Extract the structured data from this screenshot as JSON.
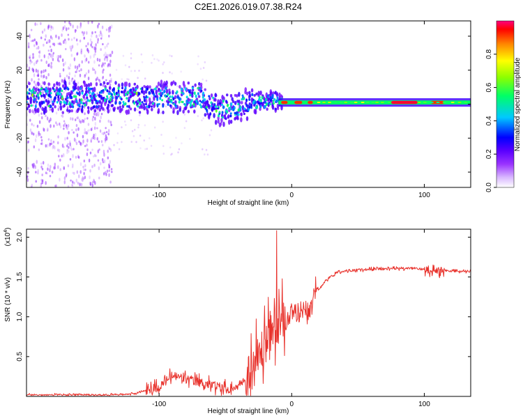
{
  "title": "C2E1.2026.019.07.38.R24",
  "chart_data": [
    {
      "type": "heatmap",
      "xlabel": "Height of straight line (km)",
      "ylabel": "Frequency (Hz)",
      "xlim": [
        -200,
        135
      ],
      "ylim": [
        -49,
        49
      ],
      "x_ticks": [
        -100,
        0,
        100
      ],
      "y_ticks": [
        40,
        20,
        0,
        -20,
        -40
      ],
      "colorbar": {
        "label": "Normalized spectral amplitude",
        "range": [
          0.0,
          1.0
        ],
        "ticks": [
          "0.0",
          "0.2",
          "0.4",
          "0.6",
          "0.8"
        ],
        "colors": [
          "#ffffff",
          "#d9b8ff",
          "#7b00ff",
          "#0000ff",
          "#00c8ff",
          "#00ff66",
          "#8cff00",
          "#ffff00",
          "#ff8800",
          "#ff0000",
          "#ff0080"
        ]
      }
    },
    {
      "type": "line",
      "xlabel": "Height of straight line (km)",
      "ylabel": "SNR (10 * v/v)",
      "multiplier": "(x10",
      "multiplier_exp": "4",
      "multiplier_close": ")",
      "xlim": [
        -200,
        135
      ],
      "ylim": [
        0.0,
        2.1
      ],
      "x_ticks": [
        -100,
        0,
        100
      ],
      "y_ticks": [
        "0.5",
        "1.0",
        "1.5",
        "2.0"
      ],
      "color": "#e8322c",
      "series_knots": [
        {
          "x": -200,
          "y": 0.02
        },
        {
          "x": -150,
          "y": 0.02
        },
        {
          "x": -120,
          "y": 0.03
        },
        {
          "x": -100,
          "y": 0.12
        },
        {
          "x": -90,
          "y": 0.26
        },
        {
          "x": -75,
          "y": 0.2
        },
        {
          "x": -60,
          "y": 0.14
        },
        {
          "x": -45,
          "y": 0.08
        },
        {
          "x": -35,
          "y": 0.2
        },
        {
          "x": -25,
          "y": 0.5
        },
        {
          "x": -15,
          "y": 0.85
        },
        {
          "x": -5,
          "y": 0.95
        },
        {
          "x": 5,
          "y": 1.05
        },
        {
          "x": 15,
          "y": 1.2
        },
        {
          "x": 25,
          "y": 1.45
        },
        {
          "x": 35,
          "y": 1.57
        },
        {
          "x": 60,
          "y": 1.6
        },
        {
          "x": 90,
          "y": 1.61
        },
        {
          "x": 110,
          "y": 1.58
        },
        {
          "x": 135,
          "y": 1.57
        }
      ]
    }
  ]
}
